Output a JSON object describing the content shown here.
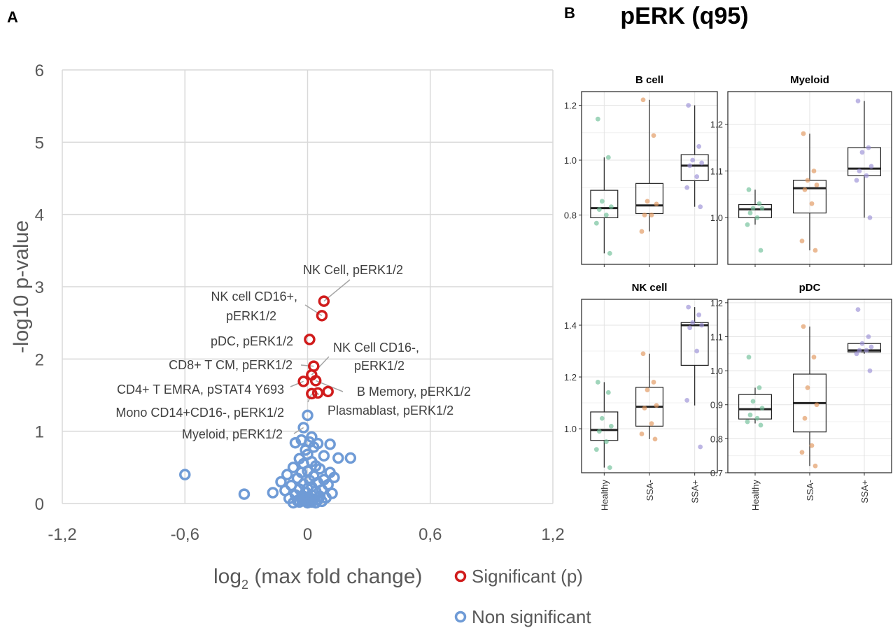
{
  "panel_a_letter": "A",
  "panel_b_letter": "B",
  "panel_b_title": "pERK (q95)",
  "colors": {
    "significant": "#d01c1c",
    "non_significant": "#6f9bd6",
    "grid": "#d9d9d9",
    "healthy": "#6dbf97",
    "ssa_neg": "#e0955a",
    "ssa_pos": "#9a8fd6"
  },
  "chart_data": [
    {
      "type": "scatter",
      "title": "",
      "xlabel": "log",
      "xlabel_sub": "2",
      "xlabel_rest": " (max fold change)",
      "ylabel": "-log10 p-value",
      "xlim": [
        -1.2,
        1.2
      ],
      "ylim": [
        0,
        6
      ],
      "x_ticks": [
        "-1,2",
        "-0,6",
        "0",
        "0,6",
        "1,2"
      ],
      "x_tick_values": [
        -1.2,
        -0.6,
        0,
        0.6,
        1.2
      ],
      "y_ticks": [
        "0",
        "1",
        "2",
        "3",
        "4",
        "5",
        "6"
      ],
      "y_tick_values": [
        0,
        1,
        2,
        3,
        4,
        5,
        6
      ],
      "legend": [
        "Significant (p)",
        "Non significant"
      ],
      "series": [
        {
          "name": "Significant (p)",
          "points": [
            {
              "x": 0.08,
              "y": 2.8
            },
            {
              "x": 0.07,
              "y": 2.6
            },
            {
              "x": 0.01,
              "y": 2.27
            },
            {
              "x": 0.03,
              "y": 1.9
            },
            {
              "x": 0.02,
              "y": 1.78
            },
            {
              "x": 0.04,
              "y": 1.7
            },
            {
              "x": -0.02,
              "y": 1.69
            },
            {
              "x": 0.1,
              "y": 1.55
            },
            {
              "x": 0.05,
              "y": 1.53
            },
            {
              "x": 0.02,
              "y": 1.52
            }
          ]
        },
        {
          "name": "Non significant",
          "points": [
            {
              "x": 0.0,
              "y": 1.22
            },
            {
              "x": -0.02,
              "y": 1.05
            },
            {
              "x": 0.02,
              "y": 0.92
            },
            {
              "x": -0.03,
              "y": 0.88
            },
            {
              "x": 0.01,
              "y": 0.85
            },
            {
              "x": 0.05,
              "y": 0.83
            },
            {
              "x": 0.11,
              "y": 0.82
            },
            {
              "x": -0.06,
              "y": 0.84
            },
            {
              "x": 0.03,
              "y": 0.78
            },
            {
              "x": -0.01,
              "y": 0.74
            },
            {
              "x": 0.0,
              "y": 0.68
            },
            {
              "x": 0.08,
              "y": 0.66
            },
            {
              "x": 0.21,
              "y": 0.63
            },
            {
              "x": 0.15,
              "y": 0.63
            },
            {
              "x": -0.04,
              "y": 0.62
            },
            {
              "x": 0.02,
              "y": 0.58
            },
            {
              "x": -0.02,
              "y": 0.55
            },
            {
              "x": 0.04,
              "y": 0.52
            },
            {
              "x": -0.07,
              "y": 0.5
            },
            {
              "x": 0.06,
              "y": 0.48
            },
            {
              "x": 0.0,
              "y": 0.45
            },
            {
              "x": -0.03,
              "y": 0.43
            },
            {
              "x": 0.11,
              "y": 0.43
            },
            {
              "x": -0.1,
              "y": 0.4
            },
            {
              "x": -0.6,
              "y": 0.4
            },
            {
              "x": 0.03,
              "y": 0.38
            },
            {
              "x": 0.13,
              "y": 0.36
            },
            {
              "x": -0.05,
              "y": 0.35
            },
            {
              "x": 0.08,
              "y": 0.33
            },
            {
              "x": 0.01,
              "y": 0.32
            },
            {
              "x": -0.13,
              "y": 0.3
            },
            {
              "x": 0.05,
              "y": 0.29
            },
            {
              "x": -0.02,
              "y": 0.27
            },
            {
              "x": 0.1,
              "y": 0.26
            },
            {
              "x": -0.08,
              "y": 0.25
            },
            {
              "x": 0.02,
              "y": 0.23
            },
            {
              "x": 0.0,
              "y": 0.21
            },
            {
              "x": -0.04,
              "y": 0.2
            },
            {
              "x": 0.07,
              "y": 0.19
            },
            {
              "x": -0.11,
              "y": 0.18
            },
            {
              "x": 0.04,
              "y": 0.17
            },
            {
              "x": -0.01,
              "y": 0.16
            },
            {
              "x": -0.17,
              "y": 0.15
            },
            {
              "x": 0.12,
              "y": 0.14
            },
            {
              "x": -0.31,
              "y": 0.13
            },
            {
              "x": 0.02,
              "y": 0.12
            },
            {
              "x": -0.06,
              "y": 0.12
            },
            {
              "x": 0.06,
              "y": 0.1
            },
            {
              "x": -0.03,
              "y": 0.09
            },
            {
              "x": 0.09,
              "y": 0.08
            },
            {
              "x": 0.0,
              "y": 0.07
            },
            {
              "x": -0.09,
              "y": 0.07
            },
            {
              "x": 0.03,
              "y": 0.06
            },
            {
              "x": -0.02,
              "y": 0.05
            },
            {
              "x": 0.05,
              "y": 0.05
            },
            {
              "x": 0.01,
              "y": 0.04
            },
            {
              "x": -0.05,
              "y": 0.04
            },
            {
              "x": 0.07,
              "y": 0.03
            },
            {
              "x": -0.01,
              "y": 0.03
            },
            {
              "x": 0.02,
              "y": 0.02
            },
            {
              "x": -0.04,
              "y": 0.02
            },
            {
              "x": 0.0,
              "y": 0.01
            },
            {
              "x": 0.04,
              "y": 0.01
            },
            {
              "x": -0.07,
              "y": 0.01
            }
          ]
        }
      ],
      "annotations": [
        {
          "text": "NK Cell, pERK1/2",
          "x": 0.08,
          "y": 2.8
        },
        {
          "text": "NK cell CD16+,",
          "text2": "pERK1/2",
          "x": 0.07,
          "y": 2.6
        },
        {
          "text": "pDC, pERK1/2",
          "x": 0.01,
          "y": 2.27
        },
        {
          "text": "NK Cell CD16-,",
          "text2": "pERK1/2",
          "x": 0.02,
          "y": 1.78
        },
        {
          "text": "CD8+ T CM, pERK1/2",
          "x": 0.03,
          "y": 1.9
        },
        {
          "text": "CD4+ T EMRA, pSTAT4 Y693",
          "x": -0.02,
          "y": 1.69
        },
        {
          "text": "B Memory, pERK1/2",
          "x": 0.04,
          "y": 1.7
        },
        {
          "text": "Mono CD14+CD16-, pERK1/2",
          "x": 0.02,
          "y": 1.52
        },
        {
          "text": "Plasmablast, pERK1/2",
          "x": 0.05,
          "y": 1.53
        },
        {
          "text": "Myeloid, pERK1/2",
          "x": -0.02,
          "y": 1.05
        }
      ]
    },
    {
      "type": "box",
      "title": "B cell",
      "categories": [
        "Healthy",
        "SSA-",
        "SSA+"
      ],
      "ylim": [
        0.62,
        1.25
      ],
      "y_ticks": [
        "0.8",
        "1.0",
        "1.2"
      ],
      "y_tick_values": [
        0.8,
        1.0,
        1.2
      ],
      "boxes": [
        {
          "q1": 0.79,
          "median": 0.825,
          "q3": 0.89,
          "wmin": 0.66,
          "wmax": 1.01,
          "points": [
            1.15,
            1.01,
            0.85,
            0.83,
            0.82,
            0.8,
            0.77,
            0.66
          ]
        },
        {
          "q1": 0.805,
          "median": 0.835,
          "q3": 0.915,
          "wmin": 0.74,
          "wmax": 1.22,
          "points": [
            1.22,
            1.09,
            0.85,
            0.84,
            0.8,
            0.8,
            0.74
          ]
        },
        {
          "q1": 0.925,
          "median": 0.98,
          "q3": 1.02,
          "wmin": 0.83,
          "wmax": 1.2,
          "points": [
            1.2,
            1.05,
            1.0,
            0.99,
            0.98,
            0.94,
            0.9,
            0.83
          ]
        }
      ],
      "show_x_labels": false
    },
    {
      "type": "box",
      "title": "Myeloid",
      "categories": [
        "Healthy",
        "SSA-",
        "SSA+"
      ],
      "ylim": [
        0.9,
        1.27
      ],
      "y_ticks": [
        "1.0",
        "1.1",
        "1.2"
      ],
      "y_tick_values": [
        1.0,
        1.1,
        1.2
      ],
      "boxes": [
        {
          "q1": 1.0,
          "median": 1.018,
          "q3": 1.028,
          "wmin": 0.985,
          "wmax": 1.06,
          "points": [
            1.06,
            1.03,
            1.02,
            1.02,
            1.01,
            1.0,
            0.985,
            0.93
          ]
        },
        {
          "q1": 1.01,
          "median": 1.063,
          "q3": 1.08,
          "wmin": 0.93,
          "wmax": 1.18,
          "points": [
            1.18,
            1.1,
            1.08,
            1.07,
            1.06,
            1.03,
            0.95,
            0.93
          ]
        },
        {
          "q1": 1.09,
          "median": 1.105,
          "q3": 1.15,
          "wmin": 1.0,
          "wmax": 1.25,
          "points": [
            1.25,
            1.15,
            1.14,
            1.11,
            1.1,
            1.09,
            1.08,
            1.0
          ]
        }
      ],
      "show_x_labels": false
    },
    {
      "type": "box",
      "title": "NK cell",
      "categories": [
        "Healthy",
        "SSA-",
        "SSA+"
      ],
      "ylim": [
        0.83,
        1.5
      ],
      "y_ticks": [
        "1.0",
        "1.2",
        "1.4"
      ],
      "y_tick_values": [
        1.0,
        1.2,
        1.4
      ],
      "boxes": [
        {
          "q1": 0.955,
          "median": 0.995,
          "q3": 1.065,
          "wmin": 0.85,
          "wmax": 1.18,
          "points": [
            1.18,
            1.14,
            1.04,
            1.01,
            0.99,
            0.95,
            0.92,
            0.85
          ]
        },
        {
          "q1": 1.01,
          "median": 1.085,
          "q3": 1.16,
          "wmin": 0.96,
          "wmax": 1.29,
          "points": [
            1.29,
            1.18,
            1.15,
            1.09,
            1.08,
            1.02,
            0.98,
            0.96
          ]
        },
        {
          "q1": 1.245,
          "median": 1.4,
          "q3": 1.41,
          "wmin": 1.09,
          "wmax": 1.47,
          "points": [
            1.47,
            1.44,
            1.41,
            1.4,
            1.39,
            1.3,
            1.11,
            0.93
          ]
        }
      ],
      "show_x_labels": true
    },
    {
      "type": "box",
      "title": "pDC",
      "categories": [
        "Healthy",
        "SSA-",
        "SSA+"
      ],
      "ylim": [
        0.7,
        1.21
      ],
      "y_ticks": [
        "0.7",
        "0.8",
        "0.9",
        "1.0",
        "1.1",
        "1.2"
      ],
      "y_tick_values": [
        0.7,
        0.8,
        0.9,
        1.0,
        1.1,
        1.2
      ],
      "boxes": [
        {
          "q1": 0.858,
          "median": 0.887,
          "q3": 0.93,
          "wmin": 0.845,
          "wmax": 0.95,
          "points": [
            1.04,
            0.95,
            0.91,
            0.89,
            0.87,
            0.86,
            0.85,
            0.84
          ]
        },
        {
          "q1": 0.82,
          "median": 0.905,
          "q3": 0.99,
          "wmin": 0.72,
          "wmax": 1.13,
          "points": [
            1.13,
            1.04,
            0.95,
            0.9,
            0.86,
            0.78,
            0.76,
            0.72
          ]
        },
        {
          "q1": 1.055,
          "median": 1.06,
          "q3": 1.08,
          "wmin": 1.05,
          "wmax": 1.08,
          "points": [
            1.18,
            1.1,
            1.08,
            1.07,
            1.06,
            1.06,
            1.05,
            1.0
          ]
        }
      ],
      "show_x_labels": true
    }
  ]
}
